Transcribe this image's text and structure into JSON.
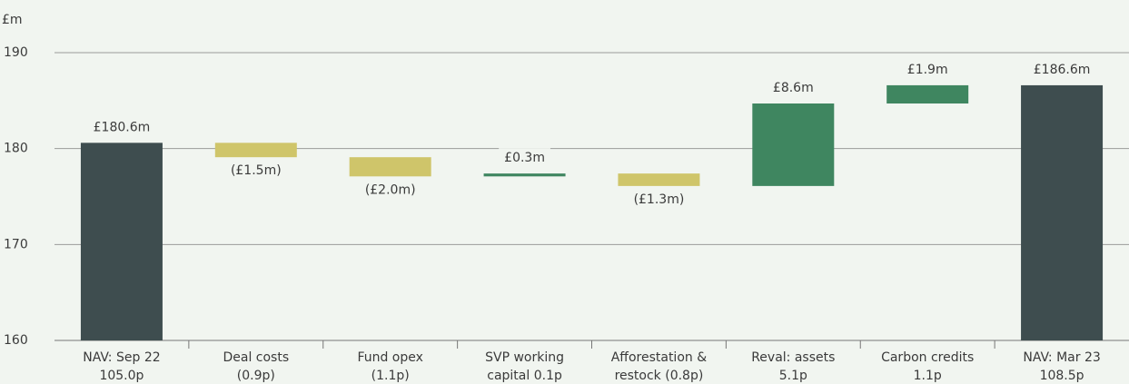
{
  "chart_data": {
    "type": "waterfall",
    "y_label": "£m",
    "categories": [
      [
        "NAV: Sep 22",
        "105.0p"
      ],
      [
        "Deal costs",
        "(0.9p)"
      ],
      [
        "Fund opex",
        "(1.1p)"
      ],
      [
        "SVP working",
        "capital 0.1p"
      ],
      [
        "Afforestation &",
        "restock (0.8p)"
      ],
      [
        "Reval: assets",
        "5.1p"
      ],
      [
        "Carbon credits",
        "1.1p"
      ],
      [
        "NAV: Mar 23",
        "108.5p"
      ]
    ],
    "measure": [
      "absolute",
      "relative",
      "relative",
      "relative",
      "relative",
      "relative",
      "relative",
      "absolute"
    ],
    "values": [
      180.6,
      -1.5,
      -2.0,
      0.3,
      -1.3,
      8.6,
      1.9,
      186.6
    ],
    "value_labels": [
      "£180.6m",
      "(£1.5m)",
      "(£2.0m)",
      "£0.3m",
      "(£1.3m)",
      "£8.6m",
      "£1.9m",
      "£186.6m"
    ],
    "colors": {
      "total": "#3e4d4f",
      "increase": "#3f8660",
      "decrease": "#cfc56a"
    },
    "ylim": [
      160,
      190
    ],
    "yticks": [
      160,
      170,
      180,
      190
    ],
    "grid": true
  }
}
